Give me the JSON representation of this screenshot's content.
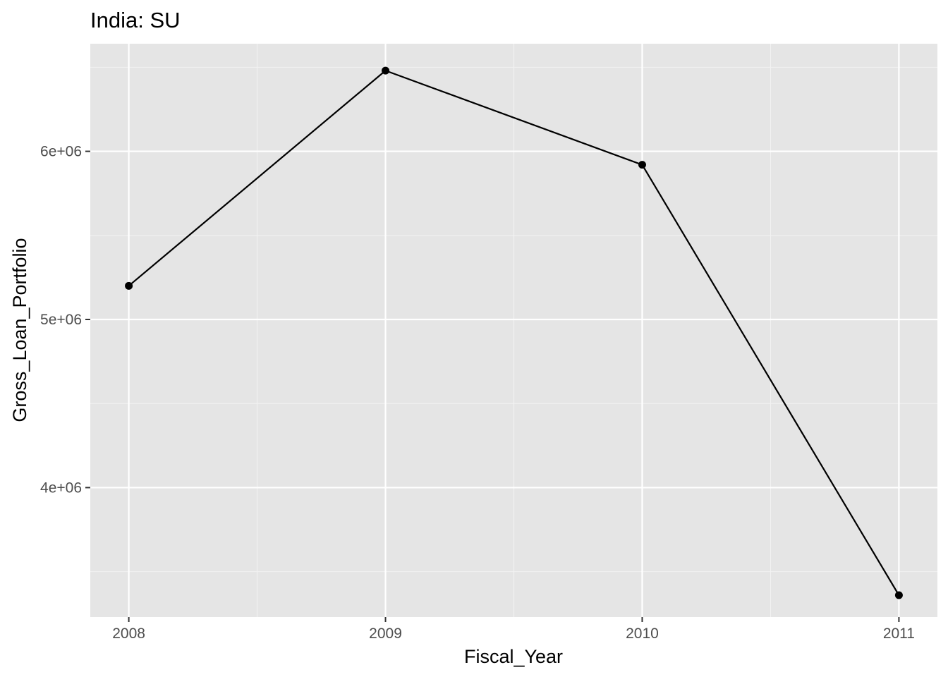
{
  "chart_data": {
    "type": "line",
    "title": "India:  SU",
    "xlabel": "Fiscal_Year",
    "ylabel": "Gross_Loan_Portfolio",
    "x": [
      2008,
      2009,
      2010,
      2011
    ],
    "series": [
      {
        "values": [
          5200000,
          6480000,
          5920000,
          3360000
        ]
      }
    ],
    "xlim": [
      2007.85,
      2011.15
    ],
    "ylim": [
      3230000,
      6640000
    ],
    "x_ticks": [
      2008,
      2009,
      2010,
      2011
    ],
    "x_tick_labels": [
      "2008",
      "2009",
      "2010",
      "2011"
    ],
    "y_ticks": [
      4000000,
      5000000,
      6000000
    ],
    "y_tick_labels": [
      "4e+06",
      "5e+06",
      "6e+06"
    ],
    "x_minor_ticks": [
      2008.5,
      2009.5,
      2010.5
    ],
    "y_minor_ticks": [
      3500000,
      4500000,
      5500000,
      6500000
    ],
    "grid": true,
    "legend": "none",
    "colors": {
      "panel_background": "#e5e5e5",
      "grid_major": "#ffffff",
      "grid_minor": "#f2f2f2",
      "line": "#000000",
      "point": "#000000",
      "tick_label": "#4d4d4d",
      "tick_mark": "#333333"
    }
  }
}
